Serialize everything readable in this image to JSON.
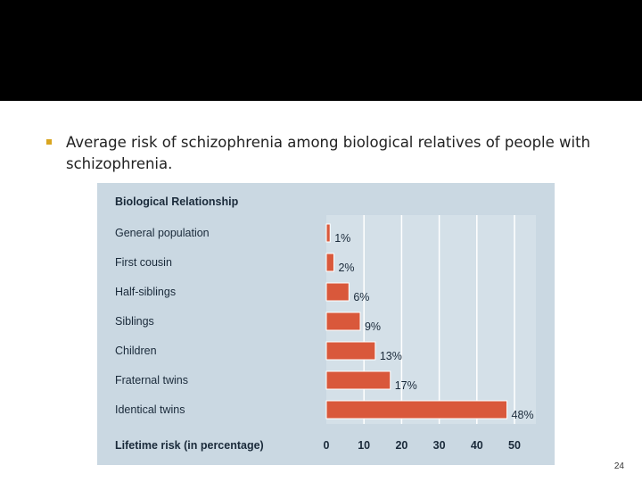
{
  "slide": {
    "bullet_text": "Average risk of schizophrenia among biological relatives of people with schizophrenia.",
    "page_number": "24",
    "accent_color": "#d9a520",
    "band_color": "#000000"
  },
  "chart_data": {
    "type": "bar",
    "orientation": "horizontal",
    "title": "Biological Relationship",
    "xlabel": "Lifetime risk (in percentage)",
    "categories": [
      "General population",
      "First cousin",
      "Half-siblings",
      "Siblings",
      "Children",
      "Fraternal twins",
      "Identical twins"
    ],
    "values": [
      1,
      2,
      6,
      9,
      13,
      17,
      48
    ],
    "value_labels": [
      "1%",
      "2%",
      "6%",
      "9%",
      "13%",
      "17%",
      "48%"
    ],
    "xlim": [
      0,
      50
    ],
    "xticks": [
      0,
      10,
      20,
      30,
      40,
      50
    ],
    "grid": true,
    "bar_color": "#d9583b",
    "panel_color": "#cad8e2"
  }
}
